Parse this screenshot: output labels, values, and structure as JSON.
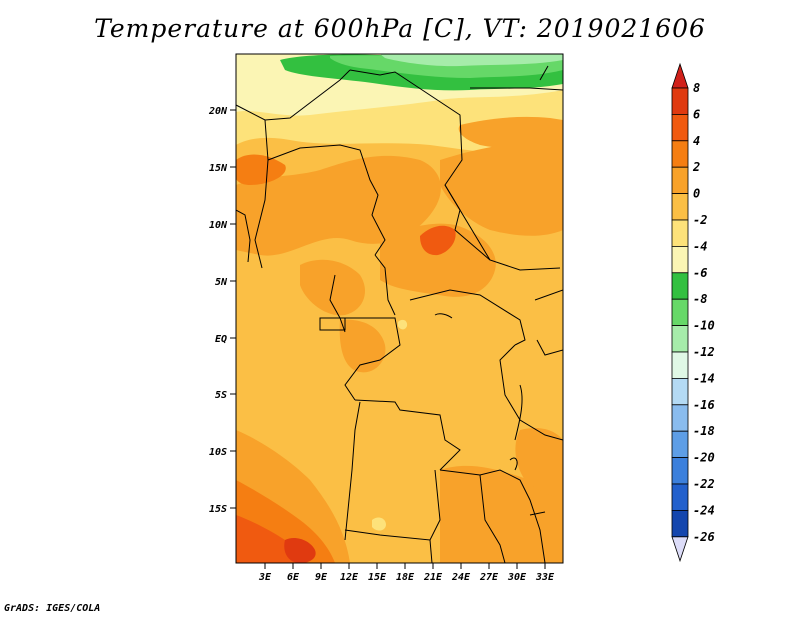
{
  "title": "Temperature at 600hPa [C], VT: 2019021606",
  "credit": "GrADS: IGES/COLA",
  "map": {
    "lat_labels": [
      "20N",
      "15N",
      "10N",
      "5N",
      "EQ",
      "5S",
      "10S",
      "15S"
    ],
    "lon_labels": [
      "3E",
      "6E",
      "9E",
      "12E",
      "15E",
      "18E",
      "21E",
      "24E",
      "27E",
      "30E",
      "33E"
    ]
  },
  "colorbar": {
    "labels": [
      "8",
      "6",
      "4",
      "2",
      "0",
      "-2",
      "-4",
      "-6",
      "-8",
      "-10",
      "-12",
      "-14",
      "-16",
      "-18",
      "-20",
      "-22",
      "-24",
      "-26"
    ],
    "colors": [
      "#e03a10",
      "#f05a10",
      "#f57e12",
      "#f8a22a",
      "#fbbf45",
      "#fde27a",
      "#fbf5b4",
      "#33c040",
      "#66d868",
      "#a6ecaa",
      "#e0f8e6",
      "#b4daf4",
      "#8abcee",
      "#5e9ee6",
      "#3c80dc",
      "#2260cc",
      "#1446ae",
      "#0a2a8a"
    ],
    "top_cap_color": "#d0201a",
    "bottom_cap_color": "#dcdcf8"
  }
}
